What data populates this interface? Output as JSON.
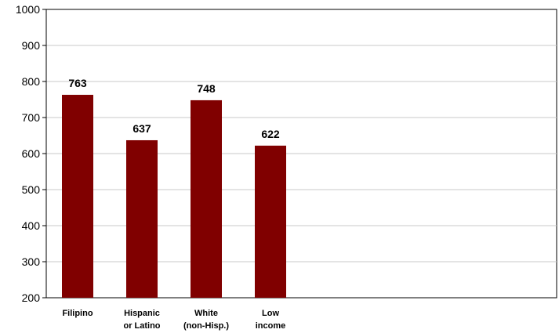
{
  "chart_data": {
    "type": "bar",
    "categories": [
      [
        "Filipino"
      ],
      [
        "Hispanic",
        "or Latino"
      ],
      [
        "White",
        "(non-Hisp.)"
      ],
      [
        "Low",
        "income"
      ]
    ],
    "values": [
      763,
      637,
      748,
      622
    ],
    "data_labels": [
      "763",
      "637",
      "748",
      "622"
    ],
    "yticks": [
      "200",
      "300",
      "400",
      "500",
      "600",
      "700",
      "800",
      "900",
      "1000"
    ],
    "ylim": [
      200,
      1000
    ],
    "grid": true,
    "legend": "none",
    "bar_color": "#800000",
    "title": "",
    "xlabel": "",
    "ylabel": ""
  }
}
